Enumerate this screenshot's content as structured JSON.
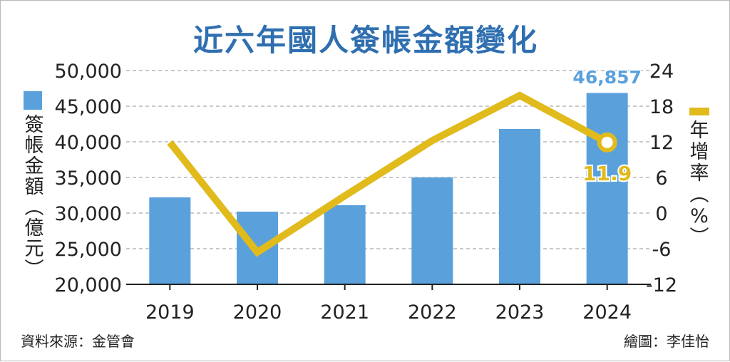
{
  "title": "近六年國人簽帳金額變化",
  "y_left_label": [
    "簽",
    "帳",
    "金",
    "額",
    "︵",
    "億",
    "元",
    "︶"
  ],
  "y_right_label": [
    "年",
    "增",
    "率",
    "︵",
    "%",
    "︶"
  ],
  "source_text": "資料來源：金管會",
  "credit_text": "繪圖：李佳怡",
  "colors": {
    "bar": "#5aa1dc",
    "line": "#e1ba1c",
    "title": "#2f6fb0",
    "bar_label": "#5aa1dc"
  },
  "chart_data": {
    "type": "bar",
    "categories": [
      "2019",
      "2020",
      "2021",
      "2022",
      "2023",
      "2024"
    ],
    "series": [
      {
        "name": "簽帳金額",
        "type": "bar",
        "axis": "left",
        "values": [
          32200,
          30200,
          31100,
          35000,
          41800,
          46857
        ]
      },
      {
        "name": "年增率",
        "type": "line",
        "axis": "right",
        "values": [
          11.9,
          -6.6,
          2.9,
          12.2,
          19.8,
          11.9
        ]
      }
    ],
    "y_left": {
      "min": 20000,
      "max": 50000,
      "ticks": [
        "20,000",
        "25,000",
        "30,000",
        "35,000",
        "40,000",
        "45,000",
        "50,000"
      ]
    },
    "y_right": {
      "min": -12,
      "max": 24,
      "ticks": [
        "-12",
        "-6",
        "0",
        "6",
        "12",
        "18",
        "24"
      ]
    },
    "annotations": {
      "last_bar_label": "46,857",
      "last_point_label": "11.9"
    },
    "grid": "horizontal dashed"
  }
}
